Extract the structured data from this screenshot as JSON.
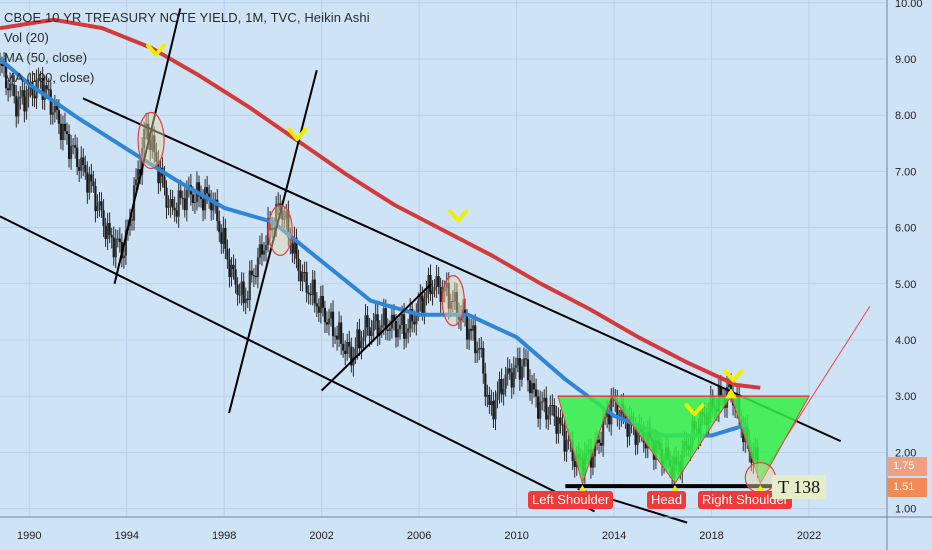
{
  "header": {
    "title": "CBOE 10 YR TREASURY NOTE YIELD, 1M, TVC, Heikin Ashi",
    "indicators": [
      "Vol (20)",
      "MA (50, close)",
      "MA (100, close)"
    ]
  },
  "colors": {
    "background": "#cfe3f7",
    "ma50": "#2f86d6",
    "ma100": "#d33b3b",
    "candle": "#2a2a2a",
    "pattern_fill": "#33ee44",
    "marker": "#f2ee00",
    "channel": "#000000",
    "label_bg": "#ee3a3a"
  },
  "annotations": {
    "left_shoulder": "Left Shoulder",
    "head": "Head",
    "right_shoulder": "Right Shoulder",
    "t_label": "T 138",
    "price_tag_1": "1.75",
    "price_tag_2": "1.51"
  },
  "chart_data": {
    "type": "line",
    "title": "CBOE 10 YR TREASURY NOTE YIELD, 1M, TVC, Heikin Ashi",
    "x_ticks": [
      "1990",
      "1994",
      "1998",
      "2002",
      "2006",
      "2010",
      "2014",
      "2018",
      "2022"
    ],
    "y_ticks": [
      "10.00",
      "9.00",
      "8.00",
      "7.00",
      "6.00",
      "5.00",
      "4.00",
      "3.00",
      "2.00",
      "1.00"
    ],
    "xlim": [
      1988.8,
      2025.2
    ],
    "ylim": [
      0.85,
      10.05
    ],
    "grid": true,
    "series": [
      {
        "name": "MA (100, close)",
        "x": [
          1988.8,
          1991,
          1993,
          1995,
          1997,
          1999,
          2001,
          2003,
          2005,
          2007,
          2009,
          2011,
          2013,
          2015,
          2017,
          2019,
          2020
        ],
        "y": [
          9.55,
          9.7,
          9.55,
          9.2,
          8.7,
          8.15,
          7.55,
          6.95,
          6.4,
          5.95,
          5.5,
          5.0,
          4.55,
          4.05,
          3.6,
          3.2,
          3.15
        ]
      },
      {
        "name": "MA (50, close)",
        "x": [
          1988.8,
          1990,
          1992,
          1994,
          1996,
          1998,
          2000,
          2002,
          2004,
          2006,
          2008,
          2010,
          2012,
          2014,
          2016,
          2018,
          2019.5
        ],
        "y": [
          9.0,
          8.55,
          7.95,
          7.4,
          6.85,
          6.35,
          6.1,
          5.4,
          4.7,
          4.45,
          4.45,
          4.05,
          3.3,
          2.65,
          2.3,
          2.3,
          2.5
        ]
      },
      {
        "name": "Heikin Ashi close",
        "x": [
          1988.8,
          1989.5,
          1990.5,
          1991.5,
          1992.5,
          1993.3,
          1993.9,
          1994.8,
          1995.8,
          1996.5,
          1997.5,
          1998.3,
          1998.8,
          1999.8,
          2000.3,
          2001.2,
          2002.2,
          2003.2,
          2003.8,
          2004.5,
          2005.5,
          2006.5,
          2007.2,
          2007.8,
          2008.5,
          2008.9,
          2009.5,
          2010.3,
          2010.8,
          2011.5,
          2012.5,
          2013.2,
          2013.9,
          2014.8,
          2015.5,
          2016.5,
          2017.3,
          2018.2,
          2018.8,
          2019.5,
          2019.9
        ],
        "y": [
          8.9,
          8.2,
          8.6,
          7.6,
          6.8,
          5.8,
          5.6,
          7.8,
          6.3,
          6.6,
          6.5,
          5.2,
          4.7,
          5.9,
          6.4,
          5.1,
          4.4,
          3.7,
          4.2,
          4.3,
          4.2,
          5.0,
          4.8,
          4.4,
          3.8,
          2.7,
          3.3,
          3.6,
          2.9,
          2.7,
          1.8,
          2.0,
          2.9,
          2.4,
          2.2,
          1.7,
          2.4,
          2.9,
          3.1,
          2.1,
          1.8
        ]
      }
    ]
  }
}
